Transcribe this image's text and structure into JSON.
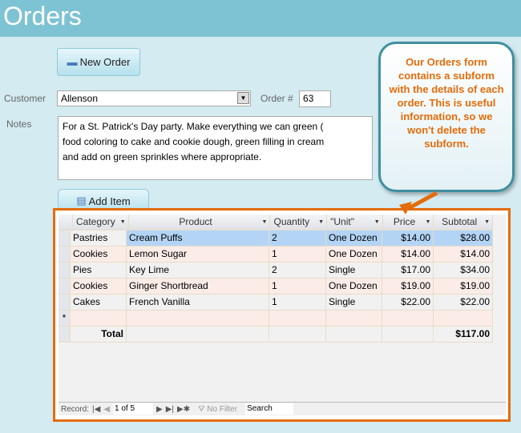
{
  "header": {
    "title": "Orders"
  },
  "form": {
    "new_order": "New Order",
    "customer_label": "Customer",
    "customer_value": "Allenson",
    "order_label": "Order #",
    "order_value": "63",
    "notes_label": "Notes",
    "notes_lines": [
      "For a St. Patrick's Day party. Make everything we can green (",
      "food coloring to cake and cookie dough, green filling in cream",
      "and add on green sprinkles where appropriate."
    ],
    "add_item": "Add Item"
  },
  "callout": {
    "text": "Our Orders form contains a subform with the details of each order. This is useful information, so we won't delete the subform."
  },
  "table": {
    "columns": [
      "Category",
      "Product",
      "Quantity",
      "\"Unit\"",
      "Price",
      "Subtotal"
    ],
    "rows": [
      [
        "Pastries",
        "Cream Puffs",
        "2",
        "One Dozen",
        "$14.00",
        "$28.00"
      ],
      [
        "Cookies",
        "Lemon Sugar",
        "1",
        "One Dozen",
        "$14.00",
        "$14.00"
      ],
      [
        "Pies",
        "Key Lime",
        "2",
        "Single",
        "$17.00",
        "$34.00"
      ],
      [
        "Cookies",
        "Ginger Shortbread",
        "1",
        "One Dozen",
        "$19.00",
        "$19.00"
      ],
      [
        "Cakes",
        "French Vanilla",
        "1",
        "Single",
        "$22.00",
        "$22.00"
      ]
    ],
    "new_row_marker": "*",
    "total_label": "Total",
    "total_value": "$117.00"
  },
  "nav": {
    "record_label": "Record:",
    "position": "1 of 5",
    "filter": "No Filter",
    "search": "Search"
  },
  "colors": {
    "accent": "#e46c0a",
    "header": "#7ec3d3",
    "selected_row": "#b3d4f5"
  }
}
